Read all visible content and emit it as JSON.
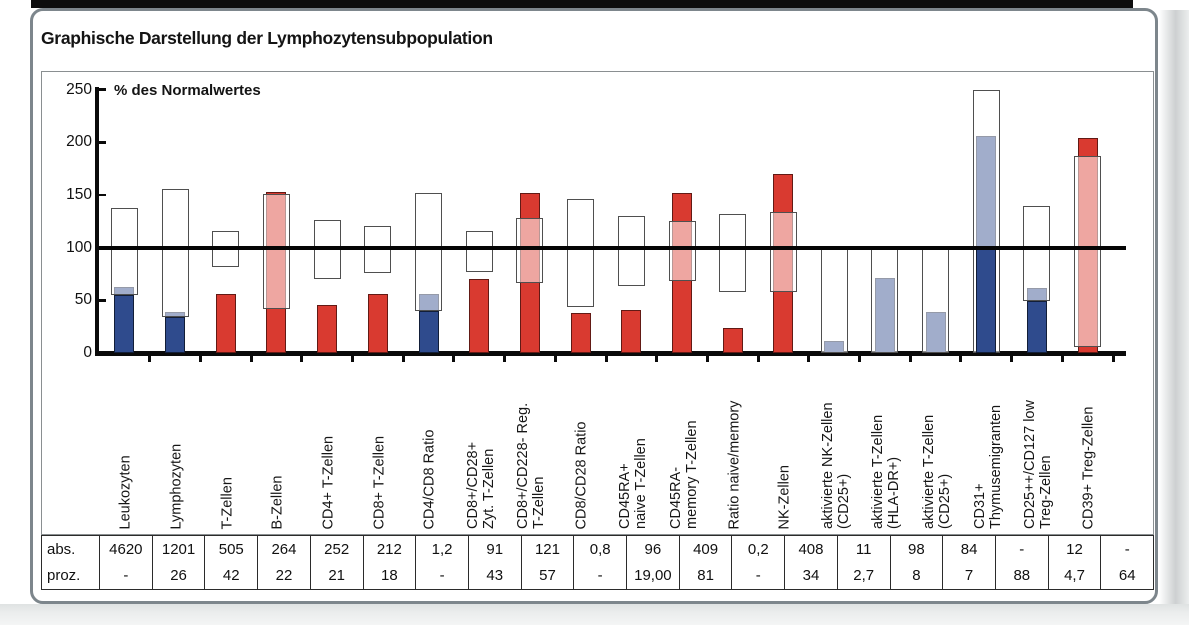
{
  "figure": {
    "title": "Graphische Darstellung der Lymphozytensubpopulation"
  },
  "table": {
    "row_label_abs": "abs.",
    "row_label_proz": "proz."
  },
  "chart_data": {
    "type": "bar",
    "title": "Graphische Darstellung der Lymphozytensubpopulation",
    "ylabel": "% des Normalwertes",
    "ylim": [
      0,
      250
    ],
    "y_ticks": [
      0,
      50,
      100,
      150,
      200,
      250
    ],
    "reference_line": 100,
    "grid": false,
    "legend": false,
    "colors": {
      "red": "#d93a30",
      "blue": "#2f4b8d",
      "range_box_fill": "rgba(255,255,255,0.55)",
      "range_box_border": "#4f4f4f",
      "axis": "#0a0a0a"
    },
    "categories": [
      {
        "label": "Leukozyten",
        "label_lines": [
          "Leukozyten"
        ],
        "abs": "4620",
        "proz": "-",
        "normal_range_pct": [
          55,
          138
        ],
        "bar_pct": 63,
        "bar_dark_pct": 55,
        "color": "blue"
      },
      {
        "label": "Lymphozyten",
        "label_lines": [
          "Lymphozyten"
        ],
        "abs": "1201",
        "proz": "26",
        "normal_range_pct": [
          34,
          156
        ],
        "bar_pct": 39,
        "bar_dark_pct": 34,
        "color": "blue"
      },
      {
        "label": "T-Zellen",
        "label_lines": [
          "T-Zellen"
        ],
        "abs": "505",
        "proz": "42",
        "normal_range_pct": [
          82,
          116
        ],
        "bar_pct": 56,
        "bar_dark_pct": null,
        "color": "red"
      },
      {
        "label": "B-Zellen",
        "label_lines": [
          "B-Zellen"
        ],
        "abs": "264",
        "proz": "22",
        "normal_range_pct": [
          42,
          151
        ],
        "bar_pct": 153,
        "bar_dark_pct": null,
        "color": "red"
      },
      {
        "label": "CD4+ T-Zellen",
        "label_lines": [
          "CD4+ T-Zellen"
        ],
        "abs": "252",
        "proz": "21",
        "normal_range_pct": [
          70,
          126
        ],
        "bar_pct": 46,
        "bar_dark_pct": null,
        "color": "red"
      },
      {
        "label": "CD8+ T-Zellen",
        "label_lines": [
          "CD8+ T-Zellen"
        ],
        "abs": "212",
        "proz": "18",
        "normal_range_pct": [
          76,
          121
        ],
        "bar_pct": 56,
        "bar_dark_pct": null,
        "color": "red"
      },
      {
        "label": "CD4/CD8 Ratio",
        "label_lines": [
          "CD4/CD8 Ratio"
        ],
        "abs": "1,2",
        "proz": "-",
        "normal_range_pct": [
          40,
          152
        ],
        "bar_pct": 56,
        "bar_dark_pct": 40,
        "color": "blue"
      },
      {
        "label": "CD8+/CD28+ Zyt. T-Zellen",
        "label_lines": [
          "CD8+/CD28+",
          "Zyt. T-Zellen"
        ],
        "abs": "91",
        "proz": "43",
        "normal_range_pct": [
          77,
          116
        ],
        "bar_pct": 70,
        "bar_dark_pct": null,
        "color": "red"
      },
      {
        "label": "CD8+/CD228- Reg. T-Zellen",
        "label_lines": [
          "CD8+/CD228- Reg.",
          "T-Zellen"
        ],
        "abs": "121",
        "proz": "57",
        "normal_range_pct": [
          66,
          128
        ],
        "bar_pct": 152,
        "bar_dark_pct": null,
        "color": "red"
      },
      {
        "label": "CD8/CD28 Ratio",
        "label_lines": [
          "CD8/CD28 Ratio"
        ],
        "abs": "0,8",
        "proz": "-",
        "normal_range_pct": [
          44,
          146
        ],
        "bar_pct": 38,
        "bar_dark_pct": null,
        "color": "red"
      },
      {
        "label": "CD45RA+ naive T-Zellen",
        "label_lines": [
          "CD45RA+",
          "naive T-Zellen"
        ],
        "abs": "96",
        "proz": "19,00",
        "normal_range_pct": [
          64,
          130
        ],
        "bar_pct": 41,
        "bar_dark_pct": null,
        "color": "red"
      },
      {
        "label": "CD45RA- memory T-Zellen",
        "label_lines": [
          "CD45RA-",
          "memory T-Zellen"
        ],
        "abs": "409",
        "proz": "81",
        "normal_range_pct": [
          68,
          125
        ],
        "bar_pct": 152,
        "bar_dark_pct": null,
        "color": "red"
      },
      {
        "label": "Ratio naive/memory",
        "label_lines": [
          "Ratio naive/memory"
        ],
        "abs": "0,2",
        "proz": "-",
        "normal_range_pct": [
          58,
          132
        ],
        "bar_pct": 24,
        "bar_dark_pct": null,
        "color": "red"
      },
      {
        "label": "NK-Zellen",
        "label_lines": [
          "NK-Zellen"
        ],
        "abs": "408",
        "proz": "34",
        "normal_range_pct": [
          58,
          134
        ],
        "bar_pct": 170,
        "bar_dark_pct": null,
        "color": "red"
      },
      {
        "label": "aktivierte NK-Zellen (CD25+)",
        "label_lines": [
          "aktivierte NK-Zellen",
          "(CD25+)"
        ],
        "abs": "11",
        "proz": "2,7",
        "normal_range_pct": [
          0,
          100
        ],
        "bar_pct": 11,
        "bar_dark_pct": null,
        "color": "blue"
      },
      {
        "label": "aktivierte T-Zellen (HLA-DR+)",
        "label_lines": [
          "aktivierte T-Zellen",
          "(HLA-DR+)"
        ],
        "abs": "98",
        "proz": "8",
        "normal_range_pct": [
          0,
          100
        ],
        "bar_pct": 71,
        "bar_dark_pct": null,
        "color": "blue"
      },
      {
        "label": "aktivierte T-Zellen (CD25+)",
        "label_lines": [
          "aktivierte T-Zellen",
          "(CD25+)"
        ],
        "abs": "84",
        "proz": "7",
        "normal_range_pct": [
          0,
          100
        ],
        "bar_pct": 39,
        "bar_dark_pct": null,
        "color": "blue"
      },
      {
        "label": "CD31+ Thymusemigranten",
        "label_lines": [
          "CD31+",
          "Thymusemigranten"
        ],
        "abs": "-",
        "proz": "88",
        "normal_range_pct": [
          0,
          250
        ],
        "bar_pct": 206,
        "bar_dark_pct": 100,
        "color": "blue"
      },
      {
        "label": "CD25++/CD127 low Treg-Zellen",
        "label_lines": [
          "CD25++/CD127 low",
          "Treg-Zellen"
        ],
        "abs": "12",
        "proz": "4,7",
        "normal_range_pct": [
          49,
          140
        ],
        "bar_pct": 62,
        "bar_dark_pct": 49,
        "color": "blue"
      },
      {
        "label": "CD39+ Treg-Zellen",
        "label_lines": [
          "CD39+ Treg-Zellen"
        ],
        "abs": "-",
        "proz": "64",
        "normal_range_pct": [
          6,
          187
        ],
        "bar_pct": 204,
        "bar_dark_pct": null,
        "color": "red"
      }
    ]
  }
}
